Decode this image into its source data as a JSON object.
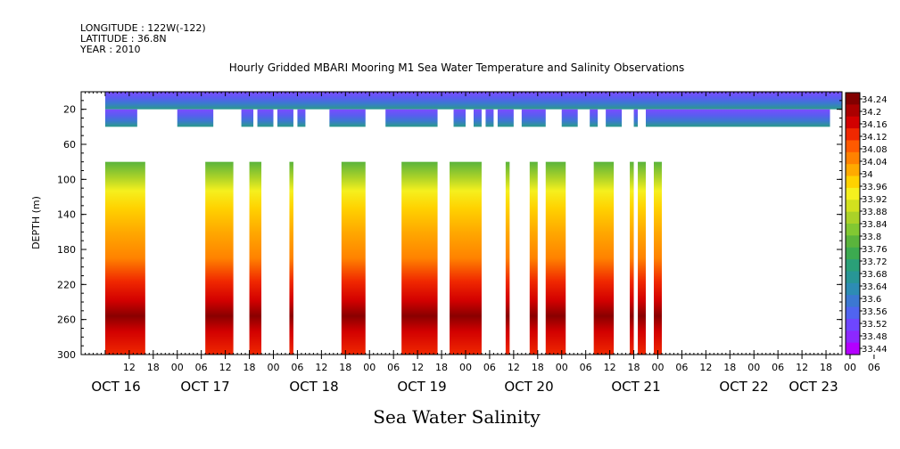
{
  "header": {
    "meta_lines": [
      "LONGITUDE : 122W(-122)",
      "LATITUDE : 36.8N",
      "YEAR : 2010"
    ]
  },
  "chart_data": {
    "type": "heatmap",
    "title": "Hourly Gridded MBARI Mooring M1 Sea Water Temperature and Salinity Observations",
    "bottom_title": "Sea Water Salinity",
    "ylabel": "DEPTH (m)",
    "y_reversed": true,
    "ylim": [
      0,
      300
    ],
    "y_ticks": [
      20,
      60,
      100,
      140,
      180,
      220,
      260,
      300
    ],
    "x_hour_labels": [
      "12",
      "18",
      "00",
      "06",
      "12",
      "18",
      "00",
      "06",
      "12",
      "18",
      "00",
      "06",
      "12",
      "18",
      "00",
      "06",
      "12",
      "18",
      "00",
      "06",
      "12",
      "18",
      "00",
      "06",
      "12",
      "18",
      "00",
      "06",
      "12",
      "18",
      "00",
      "06"
    ],
    "x_day_labels": [
      {
        "label": "OCT 16",
        "hour": 24
      },
      {
        "label": "OCT 17",
        "hour": 48
      },
      {
        "label": "OCT 18",
        "hour": 72
      },
      {
        "label": "OCT 19",
        "hour": 96
      },
      {
        "label": "OCT 20",
        "hour": 120
      },
      {
        "label": "OCT 21",
        "hour": 144
      },
      {
        "label": "OCT 22",
        "hour": 168
      },
      {
        "label": "OCT 23",
        "hour": 180
      }
    ],
    "colorbar_levels": [
      33.44,
      33.48,
      33.52,
      33.56,
      33.6,
      33.64,
      33.68,
      33.72,
      33.76,
      33.8,
      33.84,
      33.88,
      33.92,
      33.96,
      34,
      34.04,
      34.08,
      34.12,
      34.16,
      34.2,
      34.24
    ],
    "colorbar_colors": [
      "#b400ff",
      "#8c28ff",
      "#6e46ff",
      "#5064f0",
      "#3c78d2",
      "#2d8cb4",
      "#289696",
      "#2aa078",
      "#3caa50",
      "#5ab43c",
      "#82c832",
      "#aad228",
      "#d2e11e",
      "#f5f01e",
      "#ffd200",
      "#ffaa00",
      "#ff8200",
      "#ff5a00",
      "#f02800",
      "#d20000",
      "#aa0000",
      "#820000"
    ],
    "surface_depth_range": [
      0,
      40
    ],
    "deep_depth_range": [
      80,
      300
    ],
    "surface_gaps_hours": [
      [
        8,
        18
      ],
      [
        27,
        34
      ],
      [
        37,
        38
      ],
      [
        42,
        43
      ],
      [
        47,
        48
      ],
      [
        50,
        56
      ],
      [
        65,
        70
      ],
      [
        83,
        87
      ],
      [
        90,
        92
      ],
      [
        94,
        95
      ],
      [
        97,
        98
      ],
      [
        102,
        104
      ],
      [
        110,
        114
      ],
      [
        118,
        121
      ],
      [
        123,
        125
      ],
      [
        129,
        132
      ],
      [
        133,
        135
      ]
    ],
    "deep_segments_hours": [
      {
        "start": 0,
        "end": 10
      },
      {
        "start": 25,
        "end": 32
      },
      {
        "start": 36,
        "end": 39
      },
      {
        "start": 46,
        "end": 47
      },
      {
        "start": 59,
        "end": 65
      },
      {
        "start": 74,
        "end": 83
      },
      {
        "start": 86,
        "end": 94
      },
      {
        "start": 100,
        "end": 101
      },
      {
        "start": 106,
        "end": 108
      },
      {
        "start": 110,
        "end": 115
      },
      {
        "start": 122,
        "end": 127
      },
      {
        "start": 131,
        "end": 132
      },
      {
        "start": 133,
        "end": 135
      },
      {
        "start": 137,
        "end": 139
      }
    ]
  }
}
